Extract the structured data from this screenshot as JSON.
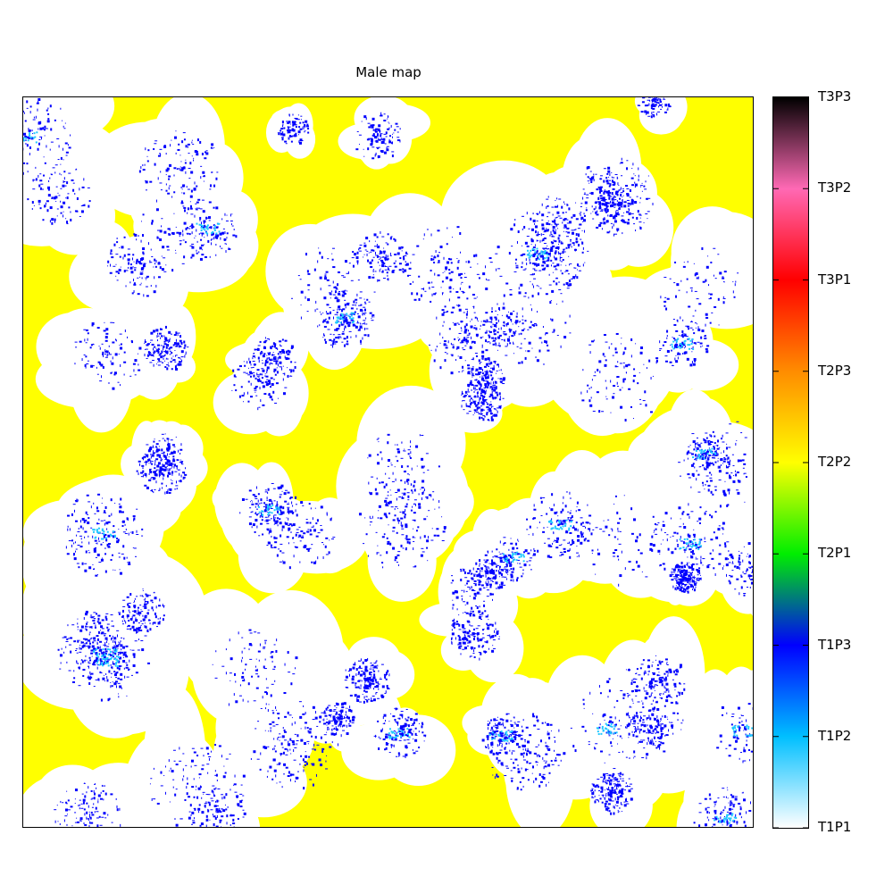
{
  "chart_data": {
    "type": "heatmap",
    "title": "Male map",
    "xlabel": "",
    "ylabel": "",
    "grid": false,
    "colorbar": {
      "position": "right",
      "tick_labels": [
        "T1P1",
        "T1P2",
        "T1P3",
        "T2P1",
        "T2P2",
        "T2P3",
        "T3P1",
        "T3P2",
        "T3P3"
      ],
      "stops": [
        {
          "label": "T1P1",
          "color": "#ffffff"
        },
        {
          "label": "T1P2",
          "color": "#00bfff"
        },
        {
          "label": "T1P3",
          "color": "#0000ff"
        },
        {
          "label": "T2P1",
          "color": "#00ee00"
        },
        {
          "label": "T2P2",
          "color": "#ffff00"
        },
        {
          "label": "T2P3",
          "color": "#ff8c00"
        },
        {
          "label": "T3P1",
          "color": "#ff0000"
        },
        {
          "label": "T3P2",
          "color": "#ff69b4"
        },
        {
          "label": "T3P3",
          "color": "#000000"
        }
      ]
    },
    "dominant_category": "T2P2",
    "category_colors": {
      "T1P1": "#ffffff",
      "T1P2": "#1ec8ff",
      "T1P3": "#0000ff",
      "T2P2": "#ffff00"
    }
  }
}
